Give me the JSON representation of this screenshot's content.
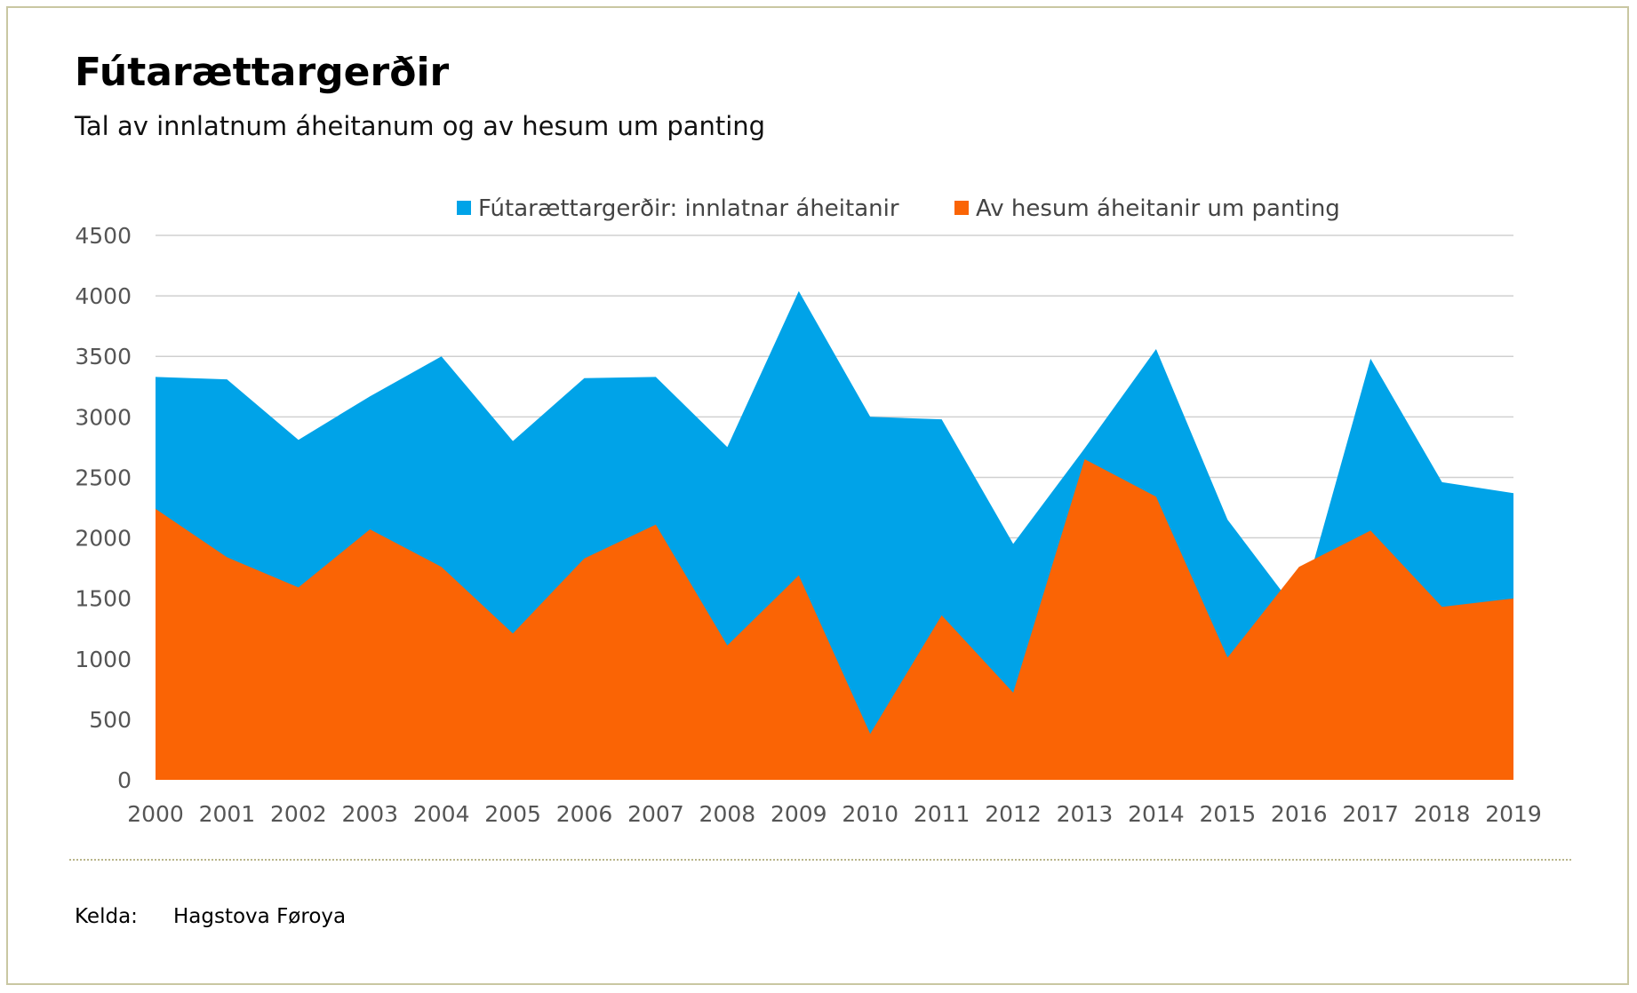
{
  "header": {
    "title": "Fútarættargerðir",
    "subtitle": "Tal av innlatnum áheitanum og av hesum um panting"
  },
  "footer": {
    "source_label": "Kelda:",
    "source_value": "Hagstova Føroya"
  },
  "colors": {
    "series_total": "#00a3e8",
    "series_pledge": "#fa6405",
    "grid": "#d0d0d0",
    "frame": "#c9c7a2"
  },
  "chart_data": {
    "type": "area",
    "title": "Fútarættargerðir",
    "subtitle": "Tal av innlatnum áheitanum og av hesum um panting",
    "xlabel": "",
    "ylabel": "",
    "x": [
      2000,
      2001,
      2002,
      2003,
      2004,
      2005,
      2006,
      2007,
      2008,
      2009,
      2010,
      2011,
      2012,
      2013,
      2014,
      2015,
      2016,
      2017,
      2018,
      2019
    ],
    "ylim": [
      0,
      4500
    ],
    "yticks": [
      0,
      500,
      1000,
      1500,
      2000,
      2500,
      3000,
      3500,
      4000,
      4500
    ],
    "grid": true,
    "legend_position": "top-center",
    "overlap": true,
    "series": [
      {
        "name": "Fútarættargerðir: innlatnar áheitanir",
        "color": "#00a3e8",
        "values": [
          3330,
          3310,
          2810,
          3170,
          3500,
          2800,
          3320,
          3330,
          2750,
          4040,
          3000,
          2980,
          1950,
          2740,
          3560,
          2150,
          1370,
          3480,
          2460,
          2370
        ]
      },
      {
        "name": "Av hesum áheitanir um panting",
        "color": "#fa6405",
        "values": [
          2240,
          1840,
          1590,
          2070,
          1760,
          1210,
          1830,
          2110,
          1110,
          1690,
          380,
          1360,
          720,
          2650,
          2340,
          1010,
          1760,
          2060,
          1430,
          1500
        ]
      }
    ]
  }
}
